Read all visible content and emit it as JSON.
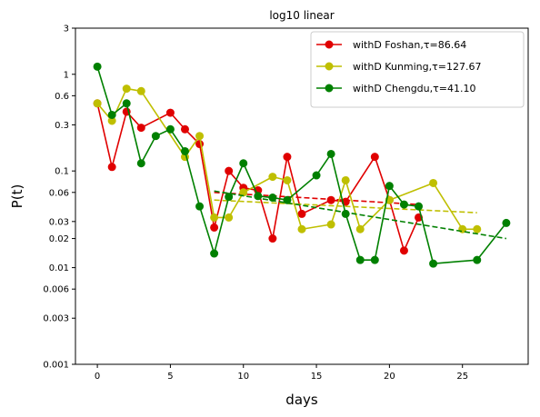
{
  "chart_data": {
    "type": "line",
    "title": "log10 linear",
    "xlabel": "days",
    "ylabel": "P(t)",
    "yscale": "log",
    "xlim": [
      -1.5,
      29.5
    ],
    "ylim": [
      0.001,
      3
    ],
    "xticks": [
      0,
      5,
      10,
      15,
      20,
      25
    ],
    "xtick_labels": [
      "0",
      "5",
      "10",
      "15",
      "20",
      "25"
    ],
    "yticks": [
      0.001,
      0.003,
      0.006,
      0.01,
      0.02,
      0.03,
      0.06,
      0.1,
      0.3,
      0.6,
      1,
      3
    ],
    "ytick_labels": [
      "0.001",
      "0.003",
      "0.006",
      "0.01",
      "0.02",
      "0.03",
      "0.06",
      "0.1",
      "0.3",
      "0.6",
      "1",
      "3"
    ],
    "grid": false,
    "legend_position": "top-right",
    "series": [
      {
        "name": "withD Foshan,τ=86.64",
        "color": "#e00000",
        "x": [
          0,
          1,
          2,
          3,
          5,
          6,
          7,
          8,
          9,
          10,
          11,
          12,
          13,
          14,
          16,
          17,
          19,
          20,
          21,
          22
        ],
        "y": [
          0.5,
          0.11,
          0.41,
          0.28,
          0.4,
          0.27,
          0.19,
          0.026,
          0.1,
          0.067,
          0.063,
          0.02,
          0.14,
          0.036,
          0.05,
          0.048,
          0.14,
          0.05,
          0.015,
          0.033
        ],
        "fit": {
          "x": [
            8,
            22
          ],
          "y": [
            0.06,
            0.045
          ]
        }
      },
      {
        "name": "withD Kunming,τ=127.67",
        "color": "#bfbf00",
        "x": [
          0,
          1,
          2,
          3,
          6,
          7,
          8,
          9,
          10,
          12,
          13,
          14,
          16,
          17,
          18,
          20,
          23,
          25,
          26
        ],
        "y": [
          0.5,
          0.33,
          0.71,
          0.67,
          0.14,
          0.23,
          0.033,
          0.033,
          0.06,
          0.087,
          0.08,
          0.025,
          0.028,
          0.08,
          0.025,
          0.05,
          0.075,
          0.025,
          0.025
        ],
        "fit": {
          "x": [
            8,
            26
          ],
          "y": [
            0.05,
            0.037
          ]
        }
      },
      {
        "name": "withD Chengdu,τ=41.10",
        "color": "#008000",
        "x": [
          0,
          1,
          2,
          3,
          4,
          5,
          6,
          7,
          8,
          9,
          10,
          11,
          12,
          13,
          15,
          16,
          17,
          18,
          19,
          20,
          21,
          22,
          23,
          26,
          28
        ],
        "y": [
          1.2,
          0.38,
          0.5,
          0.12,
          0.23,
          0.27,
          0.16,
          0.043,
          0.014,
          0.054,
          0.12,
          0.055,
          0.053,
          0.05,
          0.09,
          0.15,
          0.036,
          0.012,
          0.012,
          0.07,
          0.045,
          0.043,
          0.011,
          0.012,
          0.029
        ],
        "fit": {
          "x": [
            8,
            28
          ],
          "y": [
            0.062,
            0.02
          ]
        }
      }
    ]
  }
}
